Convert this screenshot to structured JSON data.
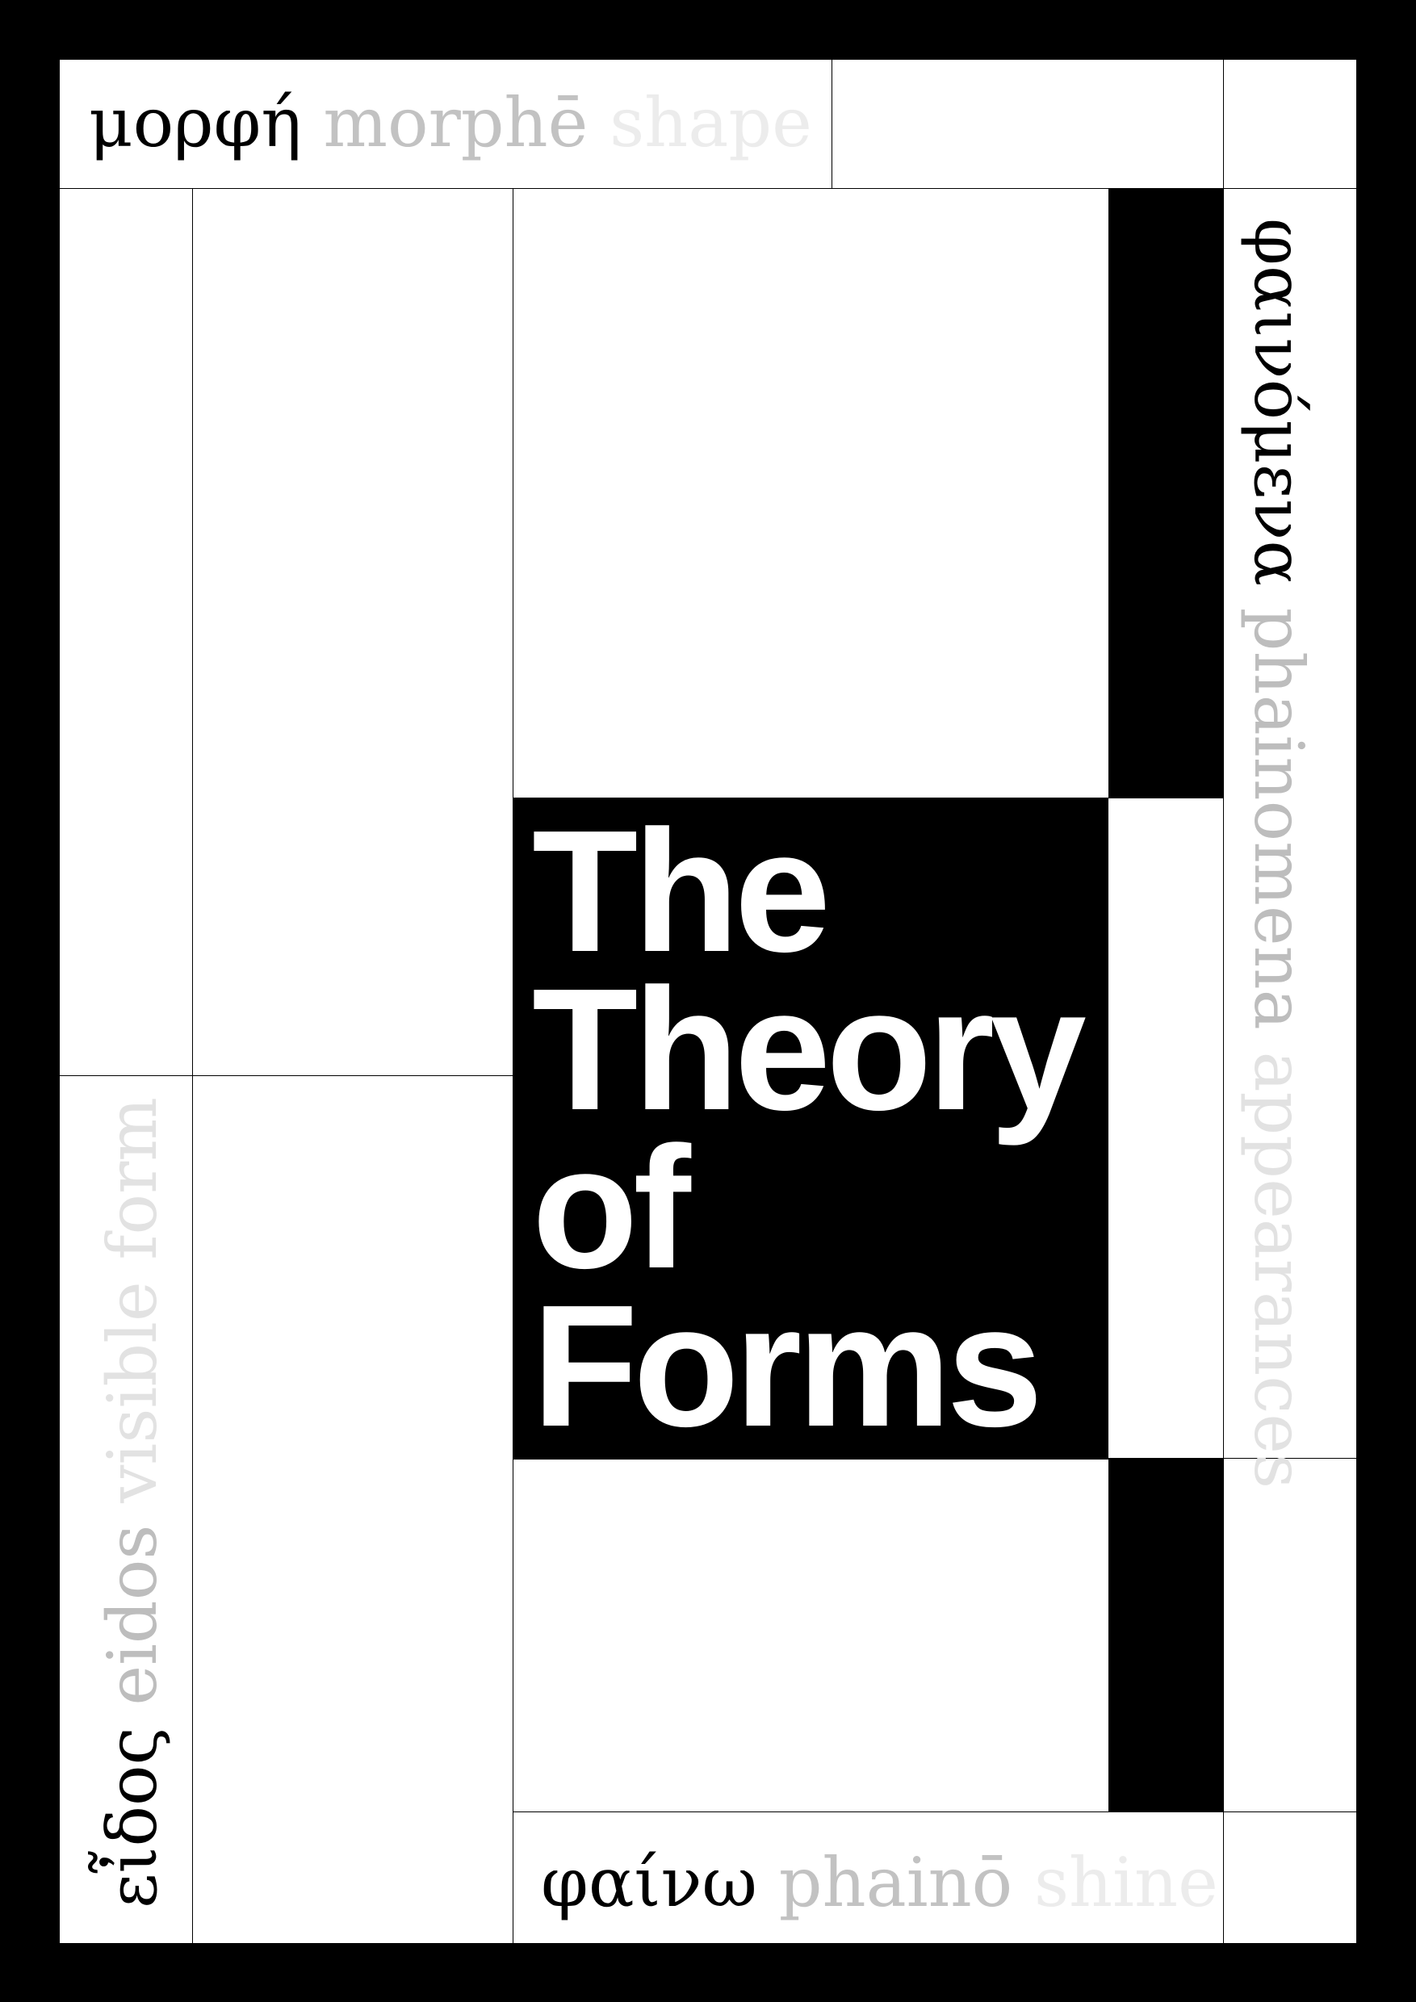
{
  "top_label": {
    "greek": "μορφή",
    "translit": "morphē",
    "english": "shape"
  },
  "left_label": {
    "greek": "εἶδος",
    "translit": "eidos",
    "english": "visible form"
  },
  "right_label": {
    "greek": "φαινόμενα",
    "translit": "phainomena",
    "english": "appearances"
  },
  "bottom_label": {
    "greek": "φαίνω",
    "translit": "phainō",
    "english": "shine"
  },
  "title": {
    "lines": [
      "The",
      "Theory",
      "of",
      "Forms"
    ]
  },
  "colors": {
    "background": "#000000",
    "panel": "#ffffff",
    "translit_gray": "#c2c2c2",
    "english_gray": "#ececec"
  }
}
